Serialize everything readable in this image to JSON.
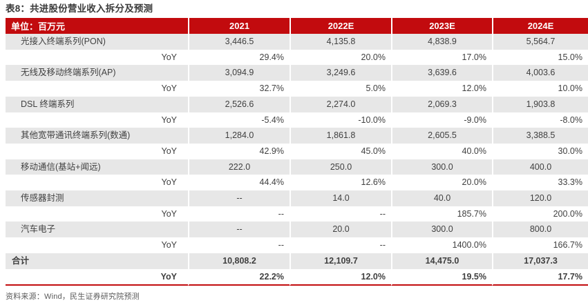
{
  "title": "表8：共进股份营业收入拆分及预测",
  "table": {
    "unit_label": "单位：百万元",
    "columns": [
      "2021",
      "2022E",
      "2023E",
      "2024E"
    ],
    "rows": [
      {
        "type": "item",
        "label": "光接入终端系列(PON)",
        "values": [
          "3,446.5",
          "4,135.8",
          "4,838.9",
          "5,564.7"
        ]
      },
      {
        "type": "yoy",
        "label": "YoY",
        "values": [
          "29.4%",
          "20.0%",
          "17.0%",
          "15.0%"
        ]
      },
      {
        "type": "item",
        "label": "无线及移动终端系列(AP)",
        "values": [
          "3,094.9",
          "3,249.6",
          "3,639.6",
          "4,003.6"
        ]
      },
      {
        "type": "yoy",
        "label": "YoY",
        "values": [
          "32.7%",
          "5.0%",
          "12.0%",
          "10.0%"
        ]
      },
      {
        "type": "item",
        "label": "DSL 终端系列",
        "values": [
          "2,526.6",
          "2,274.0",
          "2,069.3",
          "1,903.8"
        ]
      },
      {
        "type": "yoy",
        "label": "YoY",
        "values": [
          "-5.4%",
          "-10.0%",
          "-9.0%",
          "-8.0%"
        ]
      },
      {
        "type": "item",
        "label": "其他宽带通讯终端系列(数通)",
        "values": [
          "1,284.0",
          "1,861.8",
          "2,605.5",
          "3,388.5"
        ]
      },
      {
        "type": "yoy",
        "label": "YoY",
        "values": [
          "42.9%",
          "45.0%",
          "40.0%",
          "30.0%"
        ]
      },
      {
        "type": "item",
        "label": "移动通信(基站+闻远)",
        "values": [
          "222.0",
          "250.0",
          "300.0",
          "400.0"
        ]
      },
      {
        "type": "yoy",
        "label": "YoY",
        "values": [
          "44.4%",
          "12.6%",
          "20.0%",
          "33.3%"
        ]
      },
      {
        "type": "item",
        "label": "传感器封测",
        "values": [
          "--",
          "14.0",
          "40.0",
          "120.0"
        ]
      },
      {
        "type": "yoy",
        "label": "YoY",
        "values": [
          "--",
          "--",
          "185.7%",
          "200.0%"
        ]
      },
      {
        "type": "item",
        "label": "汽车电子",
        "values": [
          "--",
          "20.0",
          "300.0",
          "800.0"
        ]
      },
      {
        "type": "yoy",
        "label": "YoY",
        "values": [
          "--",
          "--",
          "1400.0%",
          "166.7%"
        ]
      },
      {
        "type": "total",
        "label": "合计",
        "values": [
          "10,808.2",
          "12,109.7",
          "14,475.0",
          "17,037.3"
        ]
      },
      {
        "type": "total_yoy",
        "label": "YoY",
        "values": [
          "22.2%",
          "12.0%",
          "19.5%",
          "17.7%"
        ]
      }
    ]
  },
  "footer": "资料来源：Wind，民生证券研究院预测",
  "colors": {
    "header_red": "#c20b0e",
    "row_gray": "#e7e7e7",
    "text": "#404040",
    "footer_text": "#5a5a5a"
  }
}
